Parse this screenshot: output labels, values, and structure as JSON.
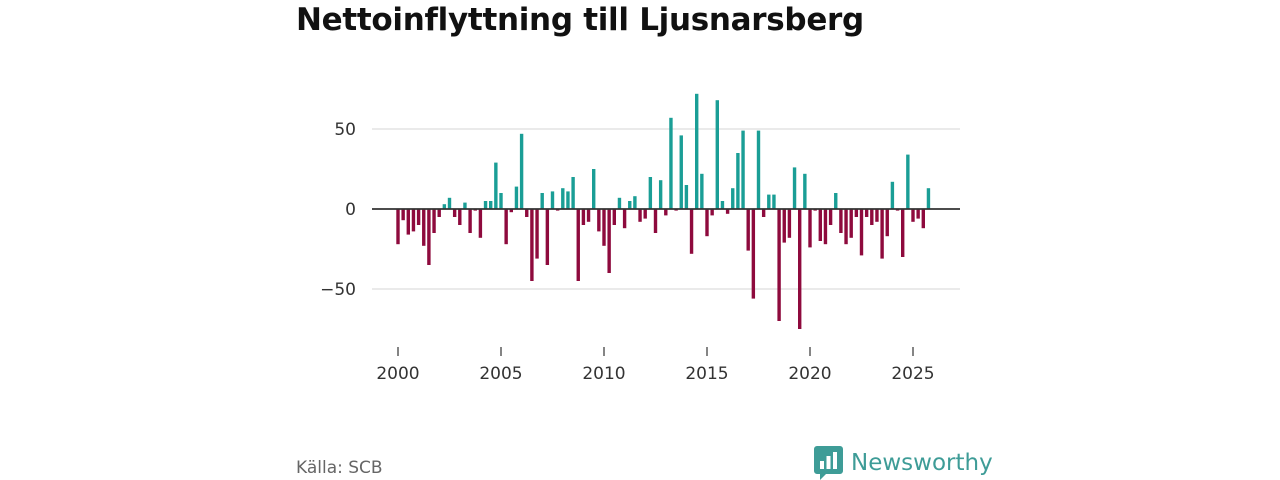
{
  "title": "Nettoinflyttning till Ljusnarsberg",
  "source": "Källa: SCB",
  "brand": {
    "name": "Newsworthy",
    "icon": "bar-chart-speech-bubble-icon",
    "color": "#3e9c97"
  },
  "colors": {
    "positive": "#1a9e96",
    "negative": "#8e0a3d",
    "grid": "#dddddd",
    "zero_line": "#333333"
  },
  "chart_data": {
    "type": "bar",
    "title": "Nettoinflyttning till Ljusnarsberg",
    "xlabel": "",
    "ylabel": "",
    "x_unit": "quarter",
    "xlim": [
      1999.1,
      2027.1
    ],
    "ylim": [
      -80,
      80
    ],
    "yticks": [
      50,
      0,
      -50
    ],
    "ytick_labels": [
      "50",
      "0",
      "−50"
    ],
    "xticks": [
      2000,
      2005,
      2010,
      2015,
      2020,
      2025
    ],
    "xtick_labels": [
      "2000",
      "2005",
      "2010",
      "2015",
      "2020",
      "2025"
    ],
    "grid": true,
    "series": [
      {
        "name": "Nettoinflyttning",
        "start": 2000.0,
        "step": 0.25,
        "values": [
          -22,
          -7,
          -16,
          -14,
          -10,
          -23,
          -35,
          -15,
          -5,
          3,
          7,
          -5,
          -10,
          4,
          -15,
          -1,
          -18,
          5,
          5,
          29,
          10,
          -22,
          -2,
          14,
          47,
          -5,
          -45,
          -31,
          10,
          -35,
          11,
          -1,
          13,
          11,
          20,
          -45,
          -10,
          -8,
          25,
          -14,
          -23,
          -40,
          -10,
          7,
          -12,
          5,
          8,
          -8,
          -6,
          20,
          -15,
          18,
          -4,
          57,
          -1,
          46,
          15,
          -28,
          72,
          22,
          -17,
          -4,
          68,
          5,
          -3,
          13,
          35,
          49,
          -26,
          -56,
          49,
          -5,
          9,
          9,
          -70,
          -21,
          -18,
          26,
          -75,
          22,
          -24,
          -1,
          -20,
          -22,
          -10,
          10,
          -15,
          -22,
          -18,
          -5,
          -29,
          -5,
          -10,
          -8,
          -31,
          -17,
          17,
          -1,
          -30,
          34,
          -8,
          -6,
          -12,
          13
        ]
      }
    ]
  }
}
